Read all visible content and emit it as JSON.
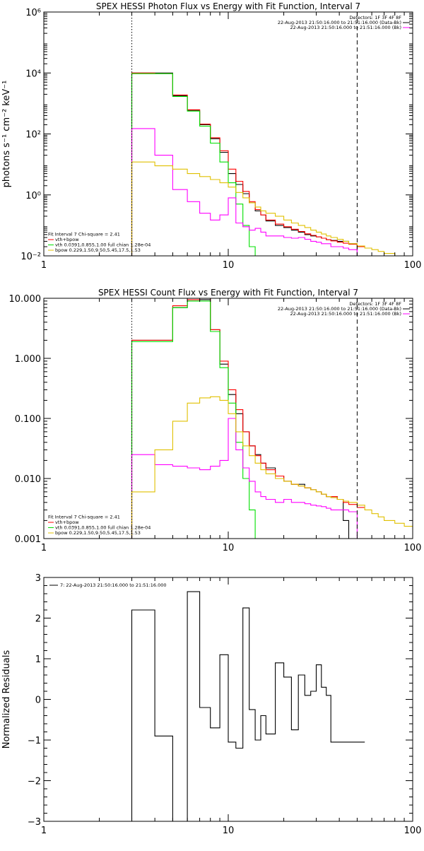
{
  "chart_data": [
    {
      "type": "line",
      "title": "SPEX HESSI Photon Flux vs Energy with Fit Function, Interval 7",
      "xlabel": "",
      "ylabel": "photons s⁻¹ cm⁻² keV⁻¹",
      "xscale": "log",
      "yscale": "log",
      "xlim": [
        1,
        100
      ],
      "ylim": [
        0.01,
        1000000
      ],
      "xticks": [
        {
          "v": 1,
          "label": "1"
        },
        {
          "v": 10,
          "label": "10"
        },
        {
          "v": 100,
          "label": "100"
        }
      ],
      "yticks": [
        {
          "v": 0.01,
          "label": "10⁻²"
        },
        {
          "v": 1,
          "label": "10⁰"
        },
        {
          "v": 100,
          "label": "10²"
        },
        {
          "v": 10000,
          "label": "10⁴"
        },
        {
          "v": 1000000,
          "label": "10⁶"
        }
      ],
      "vlines": [
        {
          "x": 3,
          "style": "dotted"
        },
        {
          "x": 50,
          "style": "dashed"
        }
      ],
      "legend_position": "top-right",
      "legend_lines": [
        {
          "text": "Detectors: 1F 3F 4F 8F",
          "color": ""
        },
        {
          "text": "22-Aug-2013 21:50:16.000 to 21:51:16.000 (Data-Bk)",
          "color": "#000000"
        },
        {
          "text": "22-Aug-2013 21:50:16.000 to 21:51:16.000 (Bk)",
          "color": "#ff00ff"
        }
      ],
      "fit_legend_lines": [
        {
          "text": "Fit Interval  7    Chi-square = 2.41",
          "color": ""
        },
        {
          "text": "vth+bpow",
          "color": "#ff0000"
        },
        {
          "text": "vth 0.0391,0.855,1.00  full chian 1.28e-04",
          "color": "#00e000"
        },
        {
          "text": "bpow 0.229,1.50,9.50,5.45,17.5,1.53",
          "color": "#e0c000"
        }
      ],
      "series": [
        {
          "color": "#000000",
          "x": [
            3,
            4,
            5,
            6,
            7,
            8,
            9,
            10,
            11,
            12,
            13,
            14,
            15,
            16,
            18,
            20,
            22,
            24,
            26,
            28,
            30,
            32,
            34,
            36,
            39,
            42,
            45,
            50
          ],
          "y": [
            10000,
            10000,
            1800,
            600,
            200,
            70,
            25,
            5,
            2.2,
            1.1,
            0.55,
            0.3,
            0.22,
            0.14,
            0.1,
            0.085,
            0.07,
            0.06,
            0.05,
            0.045,
            0.042,
            0.038,
            0.034,
            0.032,
            0.03,
            0.03,
            0.025,
            0.01
          ]
        },
        {
          "color": "#ff0000",
          "x": [
            3,
            4,
            5,
            6,
            7,
            8,
            9,
            10,
            11,
            12,
            13,
            14,
            15,
            16,
            18,
            20,
            22,
            24,
            26,
            28,
            30,
            32,
            34,
            36,
            39,
            42,
            45,
            50
          ],
          "y": [
            10000,
            9600,
            1900,
            620,
            210,
            75,
            28,
            7,
            2.8,
            1.3,
            0.6,
            0.33,
            0.22,
            0.15,
            0.11,
            0.09,
            0.075,
            0.063,
            0.053,
            0.047,
            0.042,
            0.038,
            0.034,
            0.031,
            0.028,
            0.026,
            0.024,
            0.02
          ]
        },
        {
          "color": "#00e000",
          "x": [
            3,
            4,
            5,
            6,
            7,
            8,
            9,
            10,
            11,
            12,
            13,
            14
          ],
          "y": [
            9500,
            9500,
            1700,
            560,
            180,
            50,
            12,
            2.5,
            0.5,
            0.1,
            0.02,
            0.01
          ]
        },
        {
          "color": "#ff00ff",
          "x": [
            3,
            4,
            5,
            6,
            7,
            8,
            9,
            10,
            11,
            12,
            13,
            14,
            15,
            16,
            18,
            20,
            22,
            24,
            26,
            28,
            30,
            32,
            34,
            36,
            39,
            42,
            45,
            50
          ],
          "y": [
            150,
            20,
            1.5,
            0.6,
            0.25,
            0.15,
            0.22,
            0.8,
            0.12,
            0.09,
            0.07,
            0.08,
            0.06,
            0.045,
            0.045,
            0.04,
            0.038,
            0.04,
            0.035,
            0.03,
            0.028,
            0.025,
            0.025,
            0.02,
            0.02,
            0.018,
            0.016,
            0.01
          ]
        },
        {
          "color": "#e0c000",
          "x": [
            3,
            4,
            5,
            6,
            7,
            8,
            9,
            10,
            11,
            12,
            13,
            14,
            15,
            16,
            18,
            20,
            22,
            24,
            26,
            28,
            30,
            32,
            34,
            36,
            39,
            42,
            45,
            50,
            55,
            60,
            65,
            70,
            80
          ],
          "y": [
            12,
            9,
            7,
            5,
            4,
            3.2,
            2.5,
            1.8,
            1.2,
            0.8,
            0.55,
            0.4,
            0.3,
            0.25,
            0.2,
            0.15,
            0.12,
            0.1,
            0.085,
            0.07,
            0.06,
            0.052,
            0.045,
            0.04,
            0.035,
            0.03,
            0.025,
            0.021,
            0.018,
            0.016,
            0.014,
            0.012,
            0.01
          ]
        }
      ]
    },
    {
      "type": "line",
      "title": "SPEX HESSI Count Flux vs Energy with Fit Function, Interval 7",
      "xlabel": "",
      "ylabel": "",
      "xscale": "log",
      "yscale": "log",
      "xlim": [
        1,
        100
      ],
      "ylim": [
        0.001,
        10
      ],
      "xticks": [
        {
          "v": 1,
          "label": "1"
        },
        {
          "v": 10,
          "label": "10"
        },
        {
          "v": 100,
          "label": "100"
        }
      ],
      "yticks": [
        {
          "v": 0.001,
          "label": "0.001"
        },
        {
          "v": 0.01,
          "label": "0.010"
        },
        {
          "v": 0.1,
          "label": "0.100"
        },
        {
          "v": 1,
          "label": "1.000"
        },
        {
          "v": 10,
          "label": "10.000"
        }
      ],
      "vlines": [
        {
          "x": 3,
          "style": "dotted"
        },
        {
          "x": 50,
          "style": "dashed"
        }
      ],
      "legend_position": "top-right",
      "legend_lines": [
        {
          "text": "Detectors: 1F 3F 4F 8F",
          "color": ""
        },
        {
          "text": "22-Aug-2013 21:50:16.000 to 21:51:16.000 (Data-Bk)",
          "color": "#000000"
        },
        {
          "text": "22-Aug-2013 21:50:16.000 to 21:51:16.000 (Bk)",
          "color": "#ff00ff"
        }
      ],
      "fit_legend_lines": [
        {
          "text": "Fit Interval  7    Chi-square = 2.41",
          "color": ""
        },
        {
          "text": "vth+bpow",
          "color": "#ff0000"
        },
        {
          "text": "vth 0.0391,0.855,1.00  full chian 1.28e-04",
          "color": "#00e000"
        },
        {
          "text": "bpow 0.229,1.50,9.50,5.45,17.5,1.53",
          "color": "#e0c000"
        }
      ],
      "series": [
        {
          "color": "#000000",
          "x": [
            3,
            4,
            5,
            6,
            7,
            8,
            9,
            10,
            11,
            12,
            13,
            14,
            15,
            16,
            18,
            20,
            22,
            24,
            26,
            28,
            30,
            32,
            34,
            36,
            39,
            42,
            45,
            50
          ],
          "y": [
            2,
            2,
            7,
            9,
            9.5,
            3,
            0.8,
            0.25,
            0.12,
            0.06,
            0.035,
            0.025,
            0.018,
            0.015,
            0.011,
            0.009,
            0.008,
            0.008,
            0.007,
            0.0065,
            0.006,
            0.0055,
            0.005,
            0.005,
            0.0045,
            0.002,
            0.001,
            0.001
          ]
        },
        {
          "color": "#ff0000",
          "x": [
            3,
            4,
            5,
            6,
            7,
            8,
            9,
            10,
            11,
            12,
            13,
            14,
            15,
            16,
            18,
            20,
            22,
            24,
            26,
            28,
            30,
            32,
            34,
            36,
            39,
            42,
            45,
            50
          ],
          "y": [
            2,
            2,
            7.5,
            9.5,
            10,
            3,
            0.9,
            0.3,
            0.14,
            0.06,
            0.035,
            0.024,
            0.018,
            0.014,
            0.011,
            0.009,
            0.008,
            0.0075,
            0.007,
            0.0065,
            0.006,
            0.0055,
            0.005,
            0.005,
            0.0045,
            0.004,
            0.0037,
            0.0033
          ]
        },
        {
          "color": "#00e000",
          "x": [
            3,
            4,
            5,
            6,
            7,
            8,
            9,
            10,
            11,
            12,
            13,
            14
          ],
          "y": [
            1.9,
            1.9,
            7,
            9,
            9,
            2.8,
            0.7,
            0.18,
            0.04,
            0.01,
            0.003,
            0.001
          ]
        },
        {
          "color": "#ff00ff",
          "x": [
            3,
            4,
            5,
            6,
            7,
            8,
            9,
            10,
            11,
            12,
            13,
            14,
            15,
            16,
            18,
            20,
            22,
            24,
            26,
            28,
            30,
            32,
            34,
            36,
            39,
            42,
            45,
            50
          ],
          "y": [
            0.025,
            0.017,
            0.016,
            0.015,
            0.014,
            0.016,
            0.02,
            0.1,
            0.03,
            0.015,
            0.009,
            0.006,
            0.005,
            0.0045,
            0.004,
            0.0045,
            0.004,
            0.004,
            0.0038,
            0.0036,
            0.0035,
            0.0034,
            0.0032,
            0.003,
            0.003,
            0.003,
            0.0028,
            0.001
          ]
        },
        {
          "color": "#e0c000",
          "x": [
            3,
            4,
            5,
            6,
            7,
            8,
            9,
            10,
            11,
            12,
            13,
            14,
            15,
            16,
            18,
            20,
            22,
            24,
            26,
            28,
            30,
            32,
            34,
            36,
            39,
            42,
            45,
            50,
            55,
            60,
            65,
            70,
            80,
            90,
            100
          ],
          "y": [
            0.006,
            0.03,
            0.09,
            0.18,
            0.22,
            0.23,
            0.2,
            0.12,
            0.06,
            0.035,
            0.024,
            0.018,
            0.014,
            0.012,
            0.01,
            0.009,
            0.008,
            0.0075,
            0.007,
            0.0065,
            0.006,
            0.0055,
            0.005,
            0.0048,
            0.0045,
            0.0042,
            0.004,
            0.0036,
            0.003,
            0.0026,
            0.0023,
            0.002,
            0.0018,
            0.0016,
            0.0015
          ]
        }
      ]
    },
    {
      "type": "line",
      "title": "",
      "xlabel": "",
      "ylabel": "Normalized Residuals",
      "xscale": "log",
      "yscale": "linear",
      "xlim": [
        1,
        100
      ],
      "ylim": [
        -3,
        3
      ],
      "xticks": [
        {
          "v": 1,
          "label": "1"
        },
        {
          "v": 10,
          "label": "10"
        },
        {
          "v": 100,
          "label": "100"
        }
      ],
      "yticks": [
        {
          "v": -3,
          "label": "−3"
        },
        {
          "v": -2,
          "label": "−2"
        },
        {
          "v": -1,
          "label": "−1"
        },
        {
          "v": 0,
          "label": "0"
        },
        {
          "v": 1,
          "label": "1"
        },
        {
          "v": 2,
          "label": "2"
        },
        {
          "v": 3,
          "label": "3"
        }
      ],
      "vlines": [],
      "legend_position": "top-left",
      "legend_lines": [
        {
          "text": "7: 22-Aug-2013 21:50:16.000 to 21:51:16.000",
          "color": "#000000"
        }
      ],
      "fit_legend_lines": [],
      "series": [
        {
          "color": "#000000",
          "x": [
            3,
            4,
            5,
            6,
            7,
            8,
            9,
            10,
            11,
            12,
            13,
            14,
            15,
            16,
            18,
            20,
            22,
            24,
            26,
            28,
            30,
            32,
            34,
            36,
            39,
            42,
            45,
            50
          ],
          "y": [
            2.2,
            -0.9,
            -3.05,
            2.65,
            -0.2,
            -0.7,
            1.1,
            -1.05,
            -1.2,
            2.25,
            -0.25,
            -1.0,
            -0.4,
            -0.85,
            0.9,
            0.55,
            -0.75,
            0.6,
            0.1,
            0.2,
            0.85,
            0.3,
            0.1,
            -1.05,
            -1.05,
            -1.05,
            -1.05,
            -1.05
          ]
        }
      ]
    }
  ]
}
